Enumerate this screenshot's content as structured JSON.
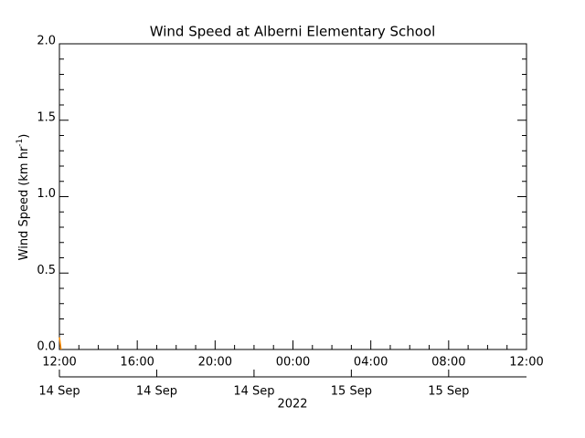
{
  "chart_data": {
    "type": "line",
    "title": "Wind Speed at Alberni Elementary School",
    "ylabel": [
      "Wind Speed (km hr",
      "-1",
      ")"
    ],
    "year_label": "2022",
    "series": [
      {
        "name": "Wind Speed",
        "color": "#ff8c00",
        "x": [
          "2022-09-14T12:00",
          "2022-09-14T12:05"
        ],
        "values": [
          0.08,
          0
        ]
      }
    ],
    "xlim": [
      "2022-09-14T12:00",
      "2022-09-15T12:00"
    ],
    "xticks": [
      {
        "value": "2022-09-14T12:00",
        "label": "12:00"
      },
      {
        "value": "2022-09-14T16:00",
        "label": "16:00"
      },
      {
        "value": "2022-09-14T20:00",
        "label": "20:00"
      },
      {
        "value": "2022-09-15T00:00",
        "label": "00:00"
      },
      {
        "value": "2022-09-15T04:00",
        "label": "04:00"
      },
      {
        "value": "2022-09-15T08:00",
        "label": "08:00"
      },
      {
        "value": "2022-09-15T12:00",
        "label": "12:00"
      }
    ],
    "date_ticks": [
      {
        "value": "2022-09-14T12:00",
        "label": "14 Sep"
      },
      {
        "value": "2022-09-14T17:00",
        "label": "14 Sep"
      },
      {
        "value": "2022-09-14T22:00",
        "label": "14 Sep"
      },
      {
        "value": "2022-09-15T03:00",
        "label": "15 Sep"
      },
      {
        "value": "2022-09-15T08:00",
        "label": "15 Sep"
      }
    ],
    "ylim": [
      0,
      2
    ],
    "yticks": [
      {
        "value": 0,
        "label": "0.0"
      },
      {
        "value": 0.5,
        "label": "0.5"
      },
      {
        "value": 1,
        "label": "1.0"
      },
      {
        "value": 1.5,
        "label": "1.5"
      },
      {
        "value": 2,
        "label": "2.0"
      }
    ]
  }
}
